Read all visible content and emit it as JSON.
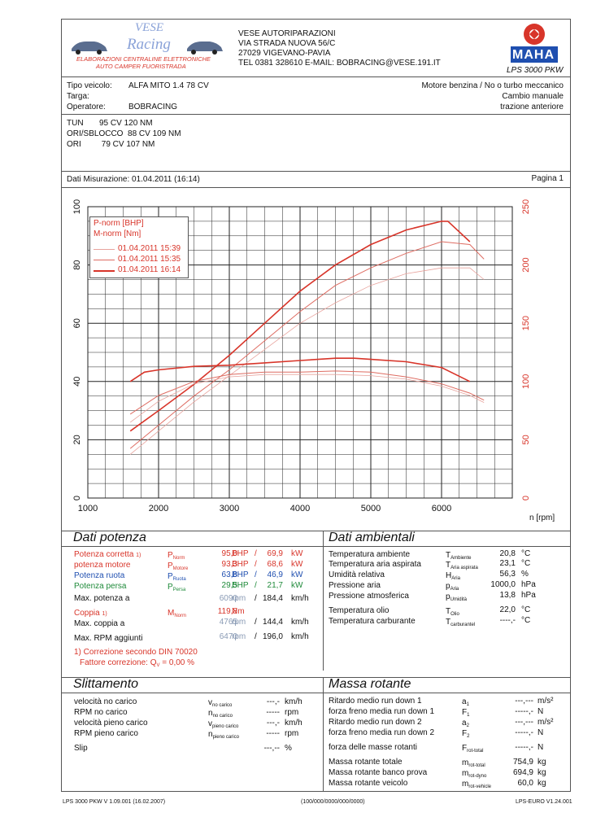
{
  "header": {
    "logo_top": "VESE",
    "logo_bottom": "Racing",
    "logo_tag1": "ELABORAZIONI CENTRALINE ELETTRONICHE",
    "logo_tag2": "AUTO   CAMPER   FUORISTRADA",
    "company": "VESE AUTORIPARAZIONI",
    "street": "VIA STRADA NUOVA 56/C",
    "city": "27029 VIGEVANO-PAVIA",
    "contact": "TEL 0381 328610  E-MAIL: BOBRACING@VESE.191.IT",
    "brand": "MAHA",
    "model": "LPS 3000 PKW"
  },
  "vehicle": {
    "tipo_label": "Tipo veicolo:",
    "tipo_value": "ALFA MITO 1.4 78 CV",
    "targa_label": "Targa:",
    "operatore_label": "Operatore:",
    "operatore_value": "BOBRACING",
    "right1": "Motore benzina / No o turbo meccanico",
    "right2": "Cambio manuale",
    "right3": "trazione anteriore"
  },
  "notes": {
    "l1": "TUN       95 CV 120 NM",
    "l2": "ORI/SBLOCCO  88 CV 109 NM",
    "l3": "ORI         79 CV 107 NM"
  },
  "measure": {
    "date_label": "Dati Misurazione: 01.04.2011 (16:14)",
    "page": "Pagina 1"
  },
  "chart_data": {
    "type": "line",
    "xlabel": "n [rpm]",
    "x_ticks": [
      1000,
      2000,
      3000,
      4000,
      5000,
      6000
    ],
    "y_left_ticks": [
      0,
      20,
      40,
      60,
      80,
      100
    ],
    "y_right_ticks": [
      0,
      50,
      100,
      150,
      200,
      250
    ],
    "xlim": [
      1000,
      7000
    ],
    "ylim_left": [
      0,
      100
    ],
    "ylim_right": [
      0,
      250
    ],
    "legend": {
      "l1": "P-norm [BHP]",
      "l2": "M-norm [Nm]",
      "runs": [
        "01.04.2011 15:39",
        "01.04.2011 15:35",
        "01.04.2011 16:14"
      ]
    },
    "colors": {
      "series": "#d8352a",
      "grid": "#222"
    },
    "series": [
      {
        "name": "01.04.2011 16:14",
        "kind": "power",
        "x": [
          1600,
          2000,
          2500,
          3000,
          3500,
          4000,
          4500,
          5000,
          5500,
          6000,
          6090,
          6400
        ],
        "values": [
          23,
          30,
          39,
          49,
          60,
          71,
          80,
          87,
          92,
          95,
          95,
          88
        ]
      },
      {
        "name": "01.04.2011 15:35",
        "kind": "power",
        "x": [
          1600,
          2000,
          2500,
          3000,
          3500,
          4000,
          4500,
          5000,
          5500,
          6000,
          6400,
          6600
        ],
        "values": [
          17,
          25,
          35,
          44,
          54,
          64,
          73,
          79,
          84,
          88,
          87,
          82
        ]
      },
      {
        "name": "01.04.2011 15:39",
        "kind": "power",
        "x": [
          1600,
          2000,
          2500,
          3000,
          3500,
          4000,
          4500,
          5000,
          5500,
          6000,
          6400,
          6600
        ],
        "values": [
          15,
          23,
          33,
          42,
          51,
          60,
          67,
          73,
          77,
          79,
          79,
          75
        ]
      },
      {
        "name": "01.04.2011 16:14",
        "kind": "torque",
        "x": [
          1600,
          1800,
          2000,
          2500,
          3000,
          3500,
          4000,
          4500,
          4765,
          5000,
          5500,
          6000,
          6400
        ],
        "values": [
          100,
          108,
          110,
          113,
          114,
          116,
          118,
          120,
          120,
          119,
          117,
          112,
          100
        ]
      },
      {
        "name": "01.04.2011 15:35",
        "kind": "torque",
        "x": [
          1600,
          2000,
          2500,
          3000,
          3500,
          4000,
          4500,
          5000,
          5500,
          6000,
          6400,
          6600
        ],
        "values": [
          72,
          88,
          100,
          106,
          108,
          108,
          109,
          108,
          104,
          98,
          90,
          84
        ]
      },
      {
        "name": "01.04.2011 15:39",
        "kind": "torque",
        "x": [
          1600,
          2000,
          2500,
          3000,
          3500,
          4000,
          4500,
          5000,
          5500,
          6000,
          6400,
          6600
        ],
        "values": [
          65,
          83,
          98,
          104,
          106,
          106,
          106,
          105,
          102,
          96,
          88,
          82
        ]
      }
    ]
  },
  "potenza": {
    "title": "Dati potenza",
    "rows": [
      {
        "label": "Potenza corretta",
        "mark": "1)",
        "sym": "P",
        "sub": "Norm",
        "v1": "95,0",
        "u1": "BHP",
        "sep": "/",
        "v2": "69,9",
        "u2": "kW"
      },
      {
        "label": "potenza motore",
        "mark": "",
        "sym": "P",
        "sub": "Motore",
        "v1": "93,3",
        "u1": "BHP",
        "sep": "/",
        "v2": "68,6",
        "u2": "kW"
      },
      {
        "label": "Potenza ruota",
        "mark": "",
        "sym": "P",
        "sub": "Ruota",
        "v1": "63,8",
        "u1": "BHP",
        "sep": "/",
        "v2": "46,9",
        "u2": "kW"
      },
      {
        "label": "Potenza persa",
        "mark": "",
        "sym": "P",
        "sub": "Persa",
        "v1": "29,5",
        "u1": "BHP",
        "sep": "/",
        "v2": "21,7",
        "u2": "kW"
      }
    ],
    "max_pot_label": "Max. potenza a",
    "max_pot_rpm": "6090",
    "rpm_unit": "rpm",
    "slash": "/",
    "max_pot_kmh": "184,4",
    "kmh_unit": "km/h",
    "coppia_label": "Coppia",
    "coppia_mark": "1)",
    "coppia_sym": "M",
    "coppia_sub": "Norm",
    "coppia_val": "119,8",
    "coppia_unit": "Nm",
    "max_coppia_label": "Max. coppia a",
    "max_coppia_rpm": "4765",
    "max_coppia_kmh": "144,4",
    "max_rpm_label": "Max. RPM aggiunti",
    "max_rpm_rpm": "6470",
    "max_rpm_kmh": "196,0",
    "foot1": "1) Correzione secondo DIN 70020",
    "foot2a": "Fattore correzione: Q",
    "foot2sub": "V",
    "foot2b": " =   0,00 %"
  },
  "ambiente": {
    "title": "Dati ambientali",
    "rows": [
      {
        "label": "Temperatura ambiente",
        "sym": "T",
        "sub": "Ambiente",
        "val": "20,8",
        "unit": "°C"
      },
      {
        "label": "Temperatura aria aspirata",
        "sym": "T",
        "sub": "Aria aspirata",
        "val": "23,1",
        "unit": "°C"
      },
      {
        "label": "Umidità relativa",
        "sym": "H",
        "sub": "Aria",
        "val": "56,3",
        "unit": "%"
      },
      {
        "label": "Pressione aria",
        "sym": "p",
        "sub": "Aria",
        "val": "1000,0",
        "unit": "hPa"
      },
      {
        "label": "Pressione atmosferica",
        "sym": "p",
        "sub": "Umidità",
        "val": "13,8",
        "unit": "hPa"
      },
      {
        "label": "Temperatura olio",
        "sym": "T",
        "sub": "Olio",
        "val": "22,0",
        "unit": "°C"
      },
      {
        "label": "Temperatura carburante",
        "sym": "T",
        "sub": "carburantel",
        "val": "----,-",
        "unit": "°C"
      }
    ]
  },
  "slittamento": {
    "title": "Slittamento",
    "rows": [
      {
        "label": "velocità no carico",
        "sym": "v",
        "sub": "no carico",
        "val": "---,-",
        "unit": "km/h"
      },
      {
        "label": "RPM no carico",
        "sym": "n",
        "sub": "no carico",
        "val": "-----",
        "unit": "rpm"
      },
      {
        "label": "velocità pieno carico",
        "sym": "v",
        "sub": "pieno carico",
        "val": "---,-",
        "unit": "km/h"
      },
      {
        "label": "RPM pieno carico",
        "sym": "n",
        "sub": "pieno carico",
        "val": "-----",
        "unit": "rpm"
      },
      {
        "label": "Slip",
        "sym": "",
        "sub": "",
        "val": "---,--",
        "unit": "%"
      }
    ]
  },
  "massa": {
    "title": "Massa rotante",
    "rows": [
      {
        "label": "Ritardo medio run down 1",
        "sym": "a",
        "sub": "1",
        "val": "---,---",
        "unit": "m/s²"
      },
      {
        "label": "forza freno media run down 1",
        "sym": "F",
        "sub": "1",
        "val": "-----,-",
        "unit": "N"
      },
      {
        "label": "Ritardo medio run down 2",
        "sym": "a",
        "sub": "2",
        "val": "---,---",
        "unit": "m/s²"
      },
      {
        "label": "forza freno media run down 2",
        "sym": "F",
        "sub": "2",
        "val": "-----,-",
        "unit": "N"
      },
      {
        "label": "forza delle masse rotanti",
        "sym": "F",
        "sub": "rot-total",
        "val": "-----,-",
        "unit": "N"
      },
      {
        "label": "Massa rotante totale",
        "sym": "m",
        "sub": "rot-total",
        "val": "754,9",
        "unit": "kg"
      },
      {
        "label": "Massa rotante banco prova",
        "sym": "m",
        "sub": "rot-dyno",
        "val": "694,9",
        "unit": "kg"
      },
      {
        "label": "Massa rotante veicolo",
        "sym": "m",
        "sub": "rot-vehicle",
        "val": "60,0",
        "unit": "kg"
      }
    ]
  },
  "footer": {
    "left": "LPS 3000 PKW V 1.09.001 (16.02.2007)",
    "mid": "(100/000/0000/000/0000)",
    "right": "LPS-EURO V1.24.001"
  }
}
